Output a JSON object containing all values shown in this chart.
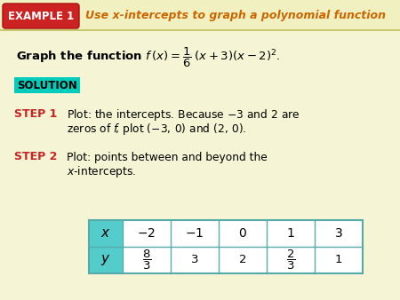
{
  "bg_color": "#f5f5d5",
  "header_stripe_color": "#f0f0c0",
  "header_border_color": "#c8c870",
  "header_bg": "#cc2222",
  "header_text": "EXAMPLE 1",
  "header_text_color": "#ffffff",
  "title_text": "Use x-intercepts to graph a polynomial function",
  "title_color": "#cc6600",
  "solution_bg": "#00ccbb",
  "solution_text": "SOLUTION",
  "solution_text_color": "#000000",
  "step_color": "#cc2222",
  "body_text_color": "#000000",
  "table_header_bg": "#55cccc",
  "table_border_color": "#55aaaa",
  "fig_width": 4.5,
  "fig_height": 3.38,
  "dpi": 100
}
